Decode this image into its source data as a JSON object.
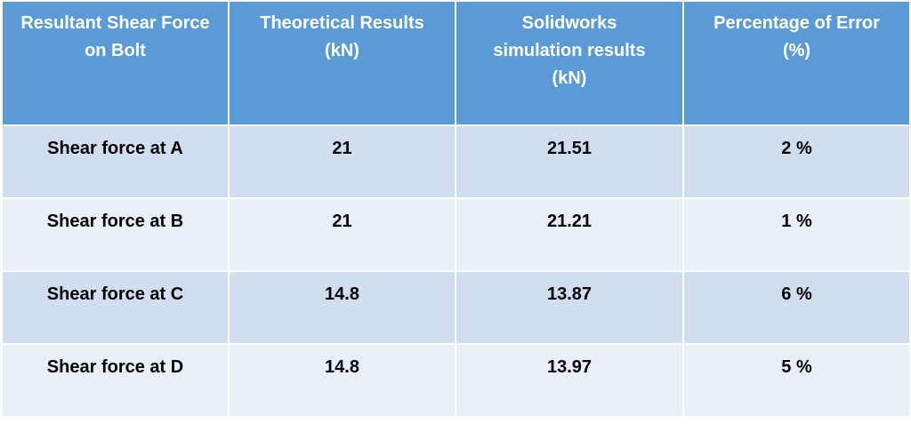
{
  "table": {
    "headers": [
      [
        "Resultant Shear Force",
        "on Bolt"
      ],
      [
        "Theoretical Results",
        "(kN)"
      ],
      [
        "Solidworks",
        "simulation results",
        "(kN)"
      ],
      [
        "Percentage of Error",
        "(%)"
      ]
    ],
    "rows": [
      [
        "Shear force at A",
        "21",
        "21.51",
        "2 %"
      ],
      [
        "Shear force at B",
        "21",
        "21.21",
        "1 %"
      ],
      [
        "Shear force at C",
        "14.8",
        "13.87",
        "6 %"
      ],
      [
        "Shear force at D",
        "14.8",
        "13.97",
        "5 %"
      ]
    ]
  },
  "colors": {
    "header_bg": "#5b9bd5",
    "row_odd_bg": "#d0deef",
    "row_even_bg": "#e9eff7",
    "border": "#ffffff"
  }
}
